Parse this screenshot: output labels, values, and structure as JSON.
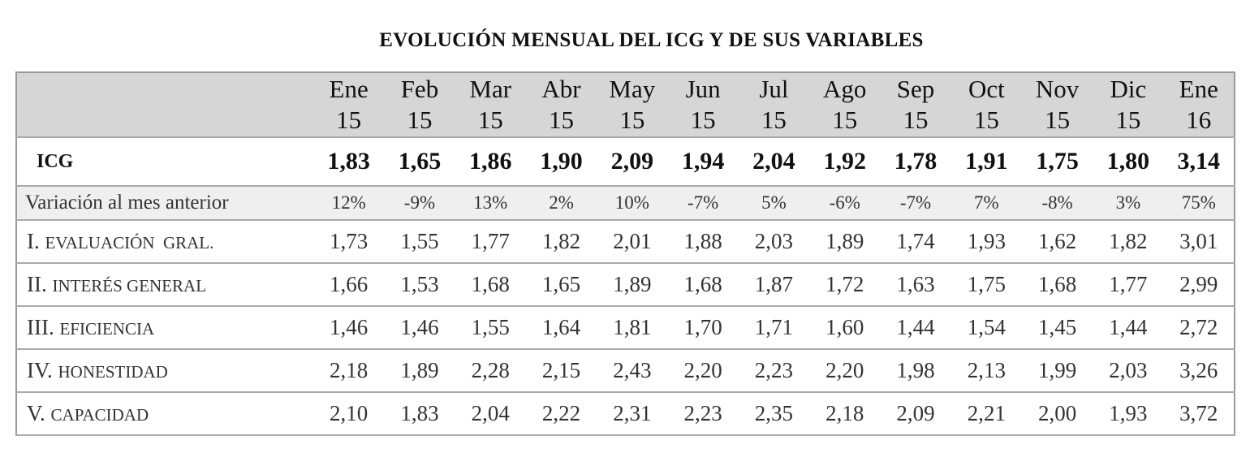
{
  "title": "EVOLUCIÓN MENSUAL DEL ICG Y DE SUS VARIABLES",
  "table": {
    "header": [
      {
        "month": "Ene",
        "year": "15"
      },
      {
        "month": "Feb",
        "year": "15"
      },
      {
        "month": "Mar",
        "year": "15"
      },
      {
        "month": "Abr",
        "year": "15"
      },
      {
        "month": "May",
        "year": "15"
      },
      {
        "month": "Jun",
        "year": "15"
      },
      {
        "month": "Jul",
        "year": "15"
      },
      {
        "month": "Ago",
        "year": "15"
      },
      {
        "month": "Sep",
        "year": "15"
      },
      {
        "month": "Oct",
        "year": "15"
      },
      {
        "month": "Nov",
        "year": "15"
      },
      {
        "month": "Dic",
        "year": "15"
      },
      {
        "month": "Ene",
        "year": "16"
      }
    ],
    "icg": {
      "label": "ICG",
      "values": [
        "1,83",
        "1,65",
        "1,86",
        "1,90",
        "2,09",
        "1,94",
        "2,04",
        "1,92",
        "1,78",
        "1,91",
        "1,75",
        "1,80",
        "3,14"
      ]
    },
    "variation": {
      "label": "Variación al mes anterior",
      "values": [
        "12%",
        "-9%",
        "13%",
        "2%",
        "10%",
        "-7%",
        "5%",
        "-6%",
        "-7%",
        "7%",
        "-8%",
        "3%",
        "75%"
      ]
    },
    "rows": [
      {
        "numeral": "I.",
        "name": "EVALUACIÓN  GRAL.",
        "values": [
          "1,73",
          "1,55",
          "1,77",
          "1,82",
          "2,01",
          "1,88",
          "2,03",
          "1,89",
          "1,74",
          "1,93",
          "1,62",
          "1,82",
          "3,01"
        ]
      },
      {
        "numeral": "II.",
        "name": "INTERÉS GENERAL",
        "values": [
          "1,66",
          "1,53",
          "1,68",
          "1,65",
          "1,89",
          "1,68",
          "1,87",
          "1,72",
          "1,63",
          "1,75",
          "1,68",
          "1,77",
          "2,99"
        ]
      },
      {
        "numeral": "III.",
        "name": "EFICIENCIA",
        "values": [
          "1,46",
          "1,46",
          "1,55",
          "1,64",
          "1,81",
          "1,70",
          "1,71",
          "1,60",
          "1,44",
          "1,54",
          "1,45",
          "1,44",
          "2,72"
        ]
      },
      {
        "numeral": "IV.",
        "name": "HONESTIDAD",
        "values": [
          "2,18",
          "1,89",
          "2,28",
          "2,15",
          "2,43",
          "2,20",
          "2,23",
          "2,20",
          "1,98",
          "2,13",
          "1,99",
          "2,03",
          "3,26"
        ]
      },
      {
        "numeral": "V.",
        "name": "CAPACIDAD",
        "values": [
          "2,10",
          "1,83",
          "2,04",
          "2,22",
          "2,31",
          "2,23",
          "2,35",
          "2,18",
          "2,09",
          "2,21",
          "2,00",
          "1,93",
          "3,72"
        ]
      }
    ]
  }
}
